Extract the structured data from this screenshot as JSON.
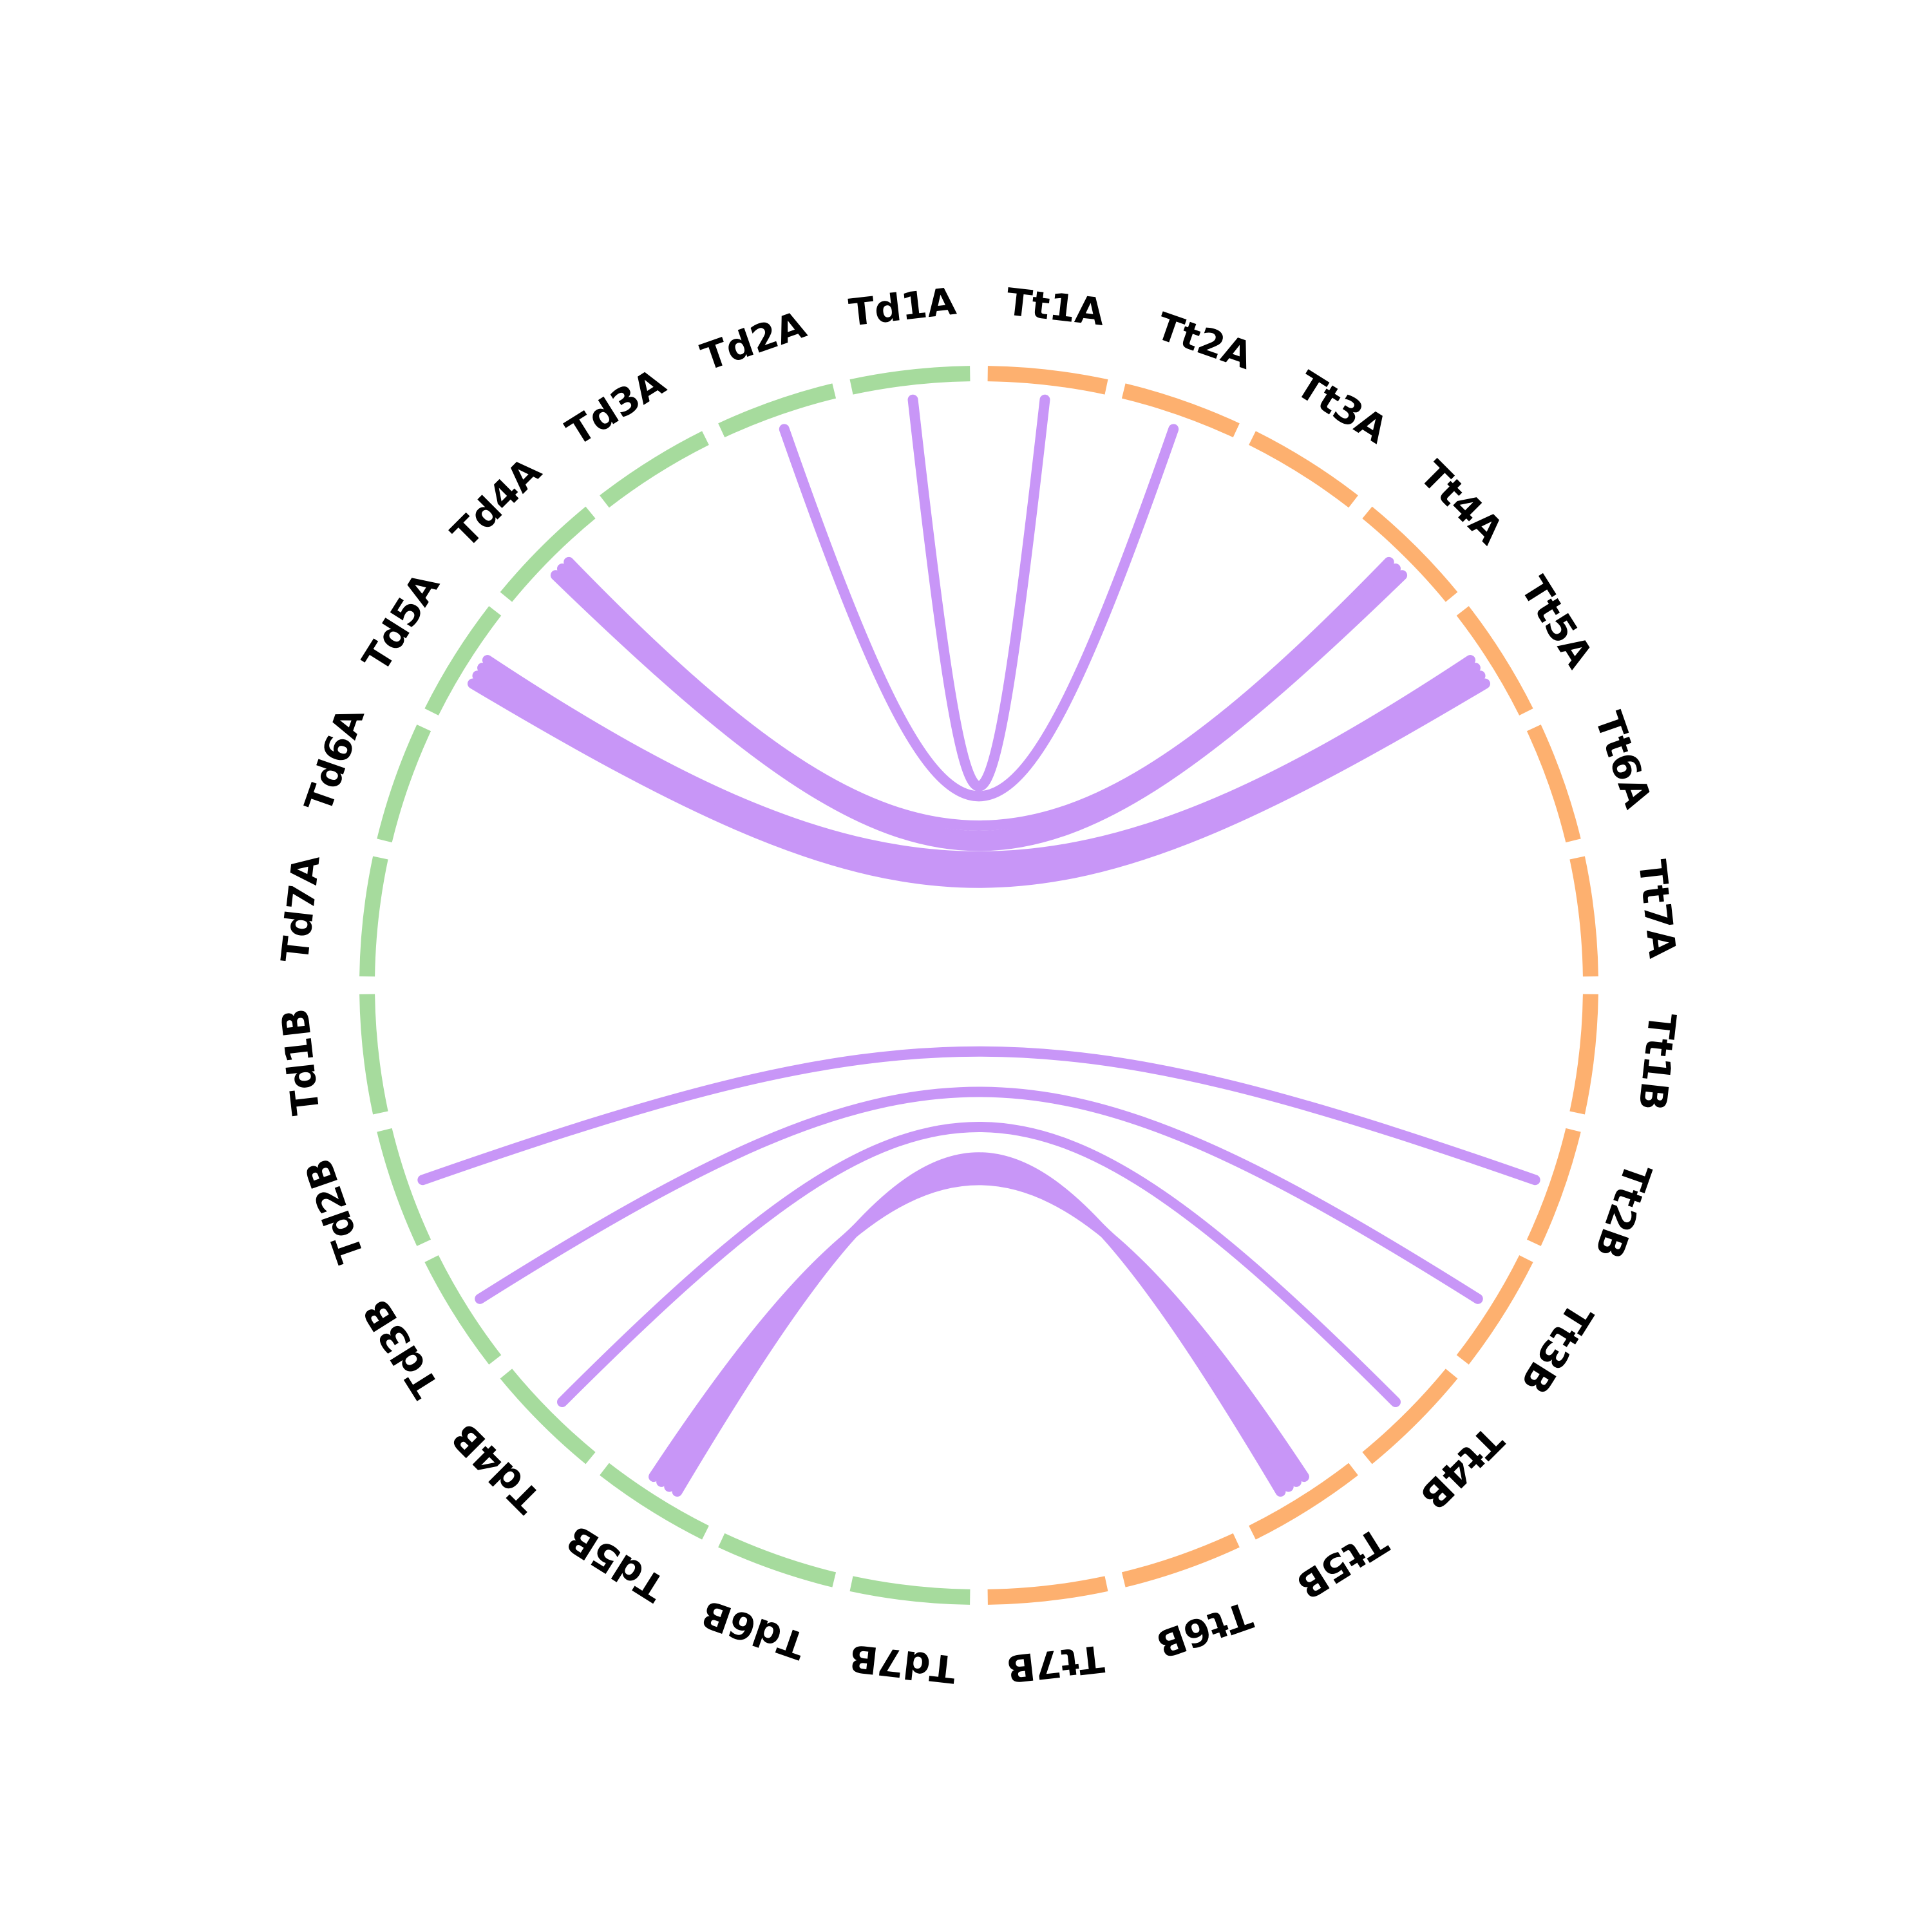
{
  "colors": {
    "td": "#a6db9d",
    "tt": "#fdb06f",
    "link": "#c896f7"
  },
  "chromosomes": [
    {
      "label": "Td1A",
      "group": "td"
    },
    {
      "label": "Tt1A",
      "group": "tt"
    },
    {
      "label": "Tt2A",
      "group": "tt"
    },
    {
      "label": "Tt3A",
      "group": "tt"
    },
    {
      "label": "Tt4A",
      "group": "tt"
    },
    {
      "label": "Tt5A",
      "group": "tt"
    },
    {
      "label": "Tt6A",
      "group": "tt"
    },
    {
      "label": "Tt7A",
      "group": "tt"
    },
    {
      "label": "Tt1B",
      "group": "tt"
    },
    {
      "label": "Tt2B",
      "group": "tt"
    },
    {
      "label": "Tt3B",
      "group": "tt"
    },
    {
      "label": "Tt4B",
      "group": "tt"
    },
    {
      "label": "Tt5B",
      "group": "tt"
    },
    {
      "label": "Tt6B",
      "group": "tt"
    },
    {
      "label": "Tt7B",
      "group": "tt"
    },
    {
      "label": "Td7B",
      "group": "td"
    },
    {
      "label": "Td6B",
      "group": "td"
    },
    {
      "label": "Td5B",
      "group": "td"
    },
    {
      "label": "Td4B",
      "group": "td"
    },
    {
      "label": "Td3B",
      "group": "td"
    },
    {
      "label": "Td2B",
      "group": "td"
    },
    {
      "label": "Td1B",
      "group": "td"
    },
    {
      "label": "Td7A",
      "group": "td"
    },
    {
      "label": "Td6A",
      "group": "td"
    },
    {
      "label": "Td5A",
      "group": "td"
    },
    {
      "label": "Td4A",
      "group": "td"
    },
    {
      "label": "Td3A",
      "group": "td"
    },
    {
      "label": "Td2A",
      "group": "td"
    }
  ],
  "links": [
    {
      "from": "Td2A",
      "to": "Tt2A"
    },
    {
      "from": "Td1A",
      "to": "Tt1A"
    },
    {
      "from": "Td4A",
      "to": "Tt4A"
    },
    {
      "from": "Td4A",
      "to": "Tt4A"
    },
    {
      "from": "Td4A",
      "to": "Tt4A"
    },
    {
      "from": "Td5A",
      "to": "Tt5A"
    },
    {
      "from": "Td5A",
      "to": "Tt5A"
    },
    {
      "from": "Td5A",
      "to": "Tt5A"
    },
    {
      "from": "Td5A",
      "to": "Tt5A"
    },
    {
      "from": "Td2B",
      "to": "Tt2B"
    },
    {
      "from": "Td3B",
      "to": "Tt3B"
    },
    {
      "from": "Td4B",
      "to": "Tt4B"
    },
    {
      "from": "Td5B",
      "to": "Tt5B"
    },
    {
      "from": "Td5B",
      "to": "Tt5B"
    },
    {
      "from": "Td5B",
      "to": "Tt5B"
    },
    {
      "from": "Td5B",
      "to": "Tt5B"
    }
  ]
}
